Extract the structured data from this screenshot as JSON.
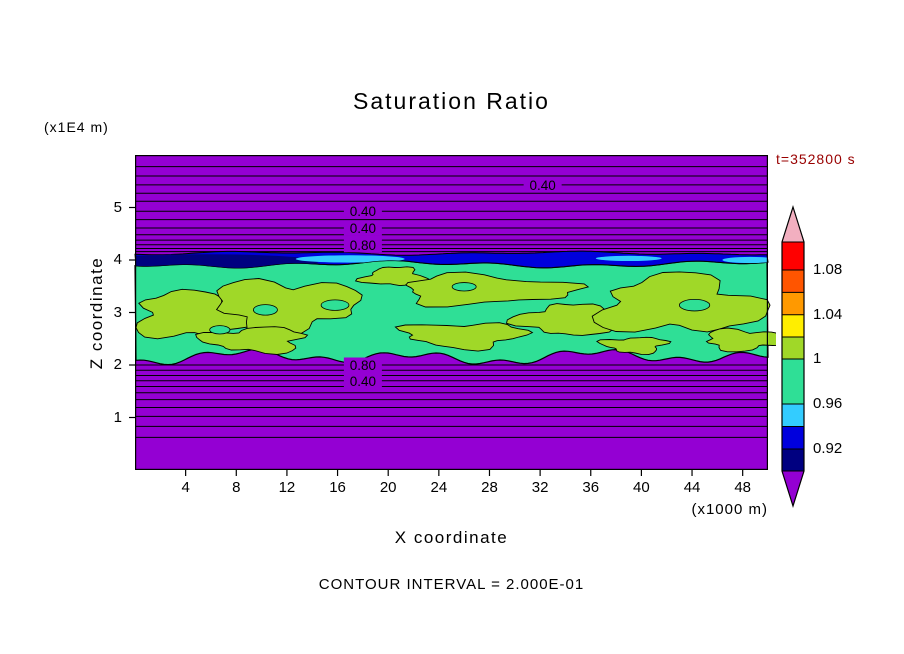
{
  "chart_data": {
    "type": "contour",
    "title": "Saturation Ratio",
    "time_label": "t=352800 s",
    "xlabel": "X coordinate",
    "ylabel": "Z coordinate",
    "x_units_label": "(x1000 m)",
    "y_units_label": "(x1E4 m)",
    "contour_interval_label": "CONTOUR INTERVAL = 2.000E-01",
    "contour_interval": 0.2,
    "xlim": [
      0,
      50
    ],
    "zlim": [
      0,
      6
    ],
    "x_ticks": [
      4,
      8,
      12,
      16,
      20,
      24,
      28,
      32,
      36,
      40,
      44,
      48
    ],
    "z_ticks": [
      1,
      2,
      3,
      4,
      5
    ],
    "colors": {
      "background": "#9400D3",
      "band_saturated": "#2FDF96",
      "band_supersaturated": "#A0D828",
      "layer_cyan": "#33CCFF",
      "layer_blue": "#0000DD",
      "layer_navy": "#000080",
      "contour_line": "#000000",
      "timestamp": "#990000"
    },
    "colorbar": {
      "tick_labels": [
        "1.08",
        "1.04",
        "1",
        "0.96",
        "0.92"
      ],
      "tick_values": [
        1.08,
        1.04,
        1.0,
        0.96,
        0.92
      ],
      "segment_colors_top_to_bottom": [
        "#F2AFC0",
        "#FF0000",
        "#FF5500",
        "#FF9900",
        "#FFEE00",
        "#A0D828",
        "#2FDF96",
        "#33CCFF",
        "#0000DD",
        "#000080",
        "#9400D3"
      ]
    },
    "contour_labels": [
      {
        "text": "0.40",
        "x": 32.2,
        "z": 5.43
      },
      {
        "text": "0.40",
        "x": 18.0,
        "z": 4.93
      },
      {
        "text": "0.40",
        "x": 18.0,
        "z": 4.61
      },
      {
        "text": "0.80",
        "x": 18.0,
        "z": 4.29
      },
      {
        "text": "0.80",
        "x": 18.0,
        "z": 2.0
      },
      {
        "text": "0.40",
        "x": 18.0,
        "z": 1.7
      }
    ],
    "background_contour_z_upper": [
      5.78,
      5.6,
      5.43,
      5.27,
      5.12,
      4.93,
      4.77,
      4.61,
      4.48,
      4.38,
      4.29,
      4.22,
      4.16
    ],
    "background_contour_z_lower": [
      2.0,
      1.9,
      1.8,
      1.7,
      1.59,
      1.47,
      1.34,
      1.19,
      1.02,
      0.83,
      0.62
    ],
    "bands": {
      "saturated_band_z": [
        2.15,
        3.92
      ],
      "blue_layer_z": [
        3.92,
        4.13
      ]
    },
    "supersaturated_blobs": [
      {
        "x": 4.7,
        "z": 2.95,
        "rx": 4.7,
        "rz": 0.42
      },
      {
        "x": 11.9,
        "z": 3.14,
        "rx": 5.5,
        "rz": 0.48
      },
      {
        "x": 9.5,
        "z": 2.48,
        "rx": 3.9,
        "rz": 0.23
      },
      {
        "x": 20.5,
        "z": 3.68,
        "rx": 2.4,
        "rz": 0.17
      },
      {
        "x": 27.6,
        "z": 3.43,
        "rx": 6.7,
        "rz": 0.27
      },
      {
        "x": 26.0,
        "z": 2.57,
        "rx": 4.7,
        "rz": 0.23
      },
      {
        "x": 34.0,
        "z": 2.86,
        "rx": 3.6,
        "rz": 0.29
      },
      {
        "x": 43.0,
        "z": 3.14,
        "rx": 6.3,
        "rz": 0.53
      },
      {
        "x": 48.2,
        "z": 2.48,
        "rx": 3.2,
        "rz": 0.19
      },
      {
        "x": 39.5,
        "z": 2.38,
        "rx": 2.4,
        "rz": 0.15
      }
    ],
    "saturated_holes": [
      {
        "x": 10.3,
        "z": 3.05,
        "rx": 0.95,
        "rz": 0.1
      },
      {
        "x": 6.7,
        "z": 2.67,
        "rx": 0.8,
        "rz": 0.08
      },
      {
        "x": 15.8,
        "z": 3.14,
        "rx": 1.1,
        "rz": 0.1
      },
      {
        "x": 26.0,
        "z": 3.49,
        "rx": 0.95,
        "rz": 0.08
      },
      {
        "x": 44.2,
        "z": 3.14,
        "rx": 1.2,
        "rz": 0.11
      }
    ],
    "navy_patches": [
      {
        "x": 5.5,
        "z": 3.97,
        "rx": 9.0,
        "rz": 0.14
      }
    ],
    "cyan_patches": [
      {
        "x": 17.0,
        "z": 4.02,
        "rx": 4.3,
        "rz": 0.07
      },
      {
        "x": 39.0,
        "z": 4.03,
        "rx": 2.6,
        "rz": 0.05
      },
      {
        "x": 48.6,
        "z": 4.0,
        "rx": 2.2,
        "rz": 0.06
      }
    ]
  }
}
